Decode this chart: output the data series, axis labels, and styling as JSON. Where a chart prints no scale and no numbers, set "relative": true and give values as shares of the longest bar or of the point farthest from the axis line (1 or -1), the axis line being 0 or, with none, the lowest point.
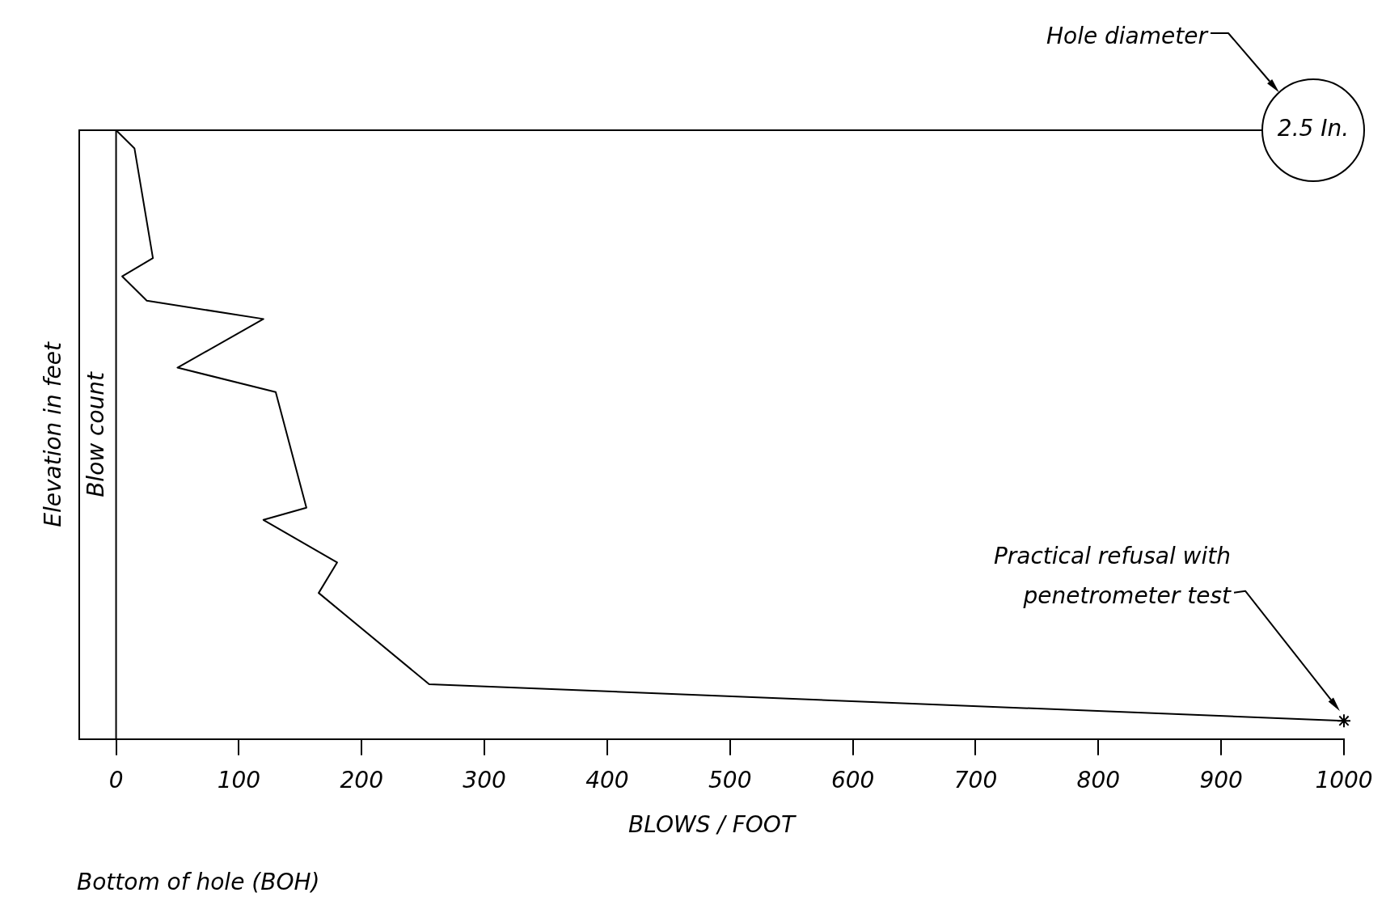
{
  "chart_data": {
    "type": "line",
    "relative": true,
    "xlabel": "BLOWS / FOOT",
    "ylabel": "Elevation in feet",
    "xlim": [
      -30,
      1000
    ],
    "xticks": [
      0,
      100,
      200,
      300,
      400,
      500,
      600,
      700,
      800,
      900,
      1000
    ],
    "marker": "none",
    "ref_lines": [
      {
        "axis": "x",
        "value": 0,
        "color": "#000000"
      }
    ],
    "series": [
      {
        "color": "#000000",
        "x": [
          0,
          15,
          30,
          5,
          25,
          120,
          50,
          130,
          155,
          120,
          180,
          165,
          255,
          1000
        ],
        "values": [
          1,
          0.97,
          0.79,
          0.76,
          0.72,
          0.69,
          0.61,
          0.57,
          0.38,
          0.36,
          0.29,
          0.24,
          0.09,
          0.03
        ]
      },
      {
        "type": "scatter",
        "color": "#000000",
        "marker": "cross",
        "x": [
          1000
        ],
        "values": [
          0.03
        ]
      }
    ],
    "annotations": [
      "Blow count",
      "Hole diameter",
      "2.5 In.",
      "Practical refusal with\npenetrometer test",
      "Bottom of hole (BOH)"
    ]
  }
}
